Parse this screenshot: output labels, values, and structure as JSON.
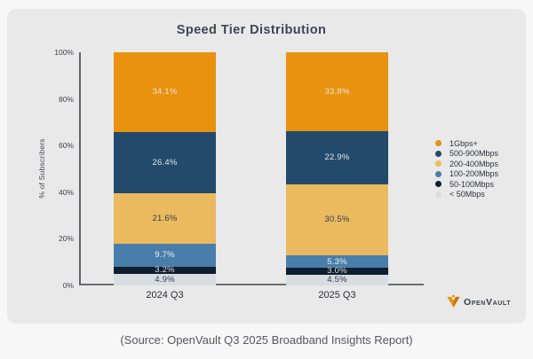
{
  "title": "Speed Tier Distribution",
  "ylabel": "% of Subscribers",
  "caption": "(Source: OpenVault Q3 2025 Broadband Insights Report)",
  "logo": {
    "text": "OpenVault"
  },
  "colors": {
    "card_background": "#e9e9ea",
    "page_background": "#f7f7f8",
    "axis": "#5f6368",
    "title_text": "#3e4653"
  },
  "chart_data": {
    "type": "bar",
    "stacked": true,
    "title": "Speed Tier Distribution",
    "xlabel": "",
    "ylabel": "% of Subscribers",
    "ylim": [
      0,
      100
    ],
    "yticks": [
      "0%",
      "20%",
      "40%",
      "60%",
      "80%",
      "100%"
    ],
    "grid": false,
    "legend_position": "right",
    "categories": [
      "2024 Q3",
      "2025 Q3"
    ],
    "series": [
      {
        "name": "1Gbps+",
        "color": "#E8920F",
        "label_color": "#EDE4D3",
        "values": [
          34.1,
          33.8
        ]
      },
      {
        "name": "500-900Mbps",
        "color": "#234A6B",
        "label_color": "#DFE5EA",
        "values": [
          26.4,
          22.9
        ]
      },
      {
        "name": "200-400Mbps",
        "color": "#EBB95E",
        "label_color": "#2C3E55",
        "values": [
          21.6,
          30.5
        ]
      },
      {
        "name": "100-200Mbps",
        "color": "#4A7EAA",
        "label_color": "#EAF0F5",
        "values": [
          9.7,
          5.3
        ]
      },
      {
        "name": "50-100Mbps",
        "color": "#0F1E2E",
        "label_color": "#D9DEE3",
        "values": [
          3.2,
          3.0
        ]
      },
      {
        "name": "< 50Mbps",
        "color": "#D8DDE1",
        "label_color": "#2C3E55",
        "values": [
          4.9,
          4.5
        ]
      }
    ]
  }
}
